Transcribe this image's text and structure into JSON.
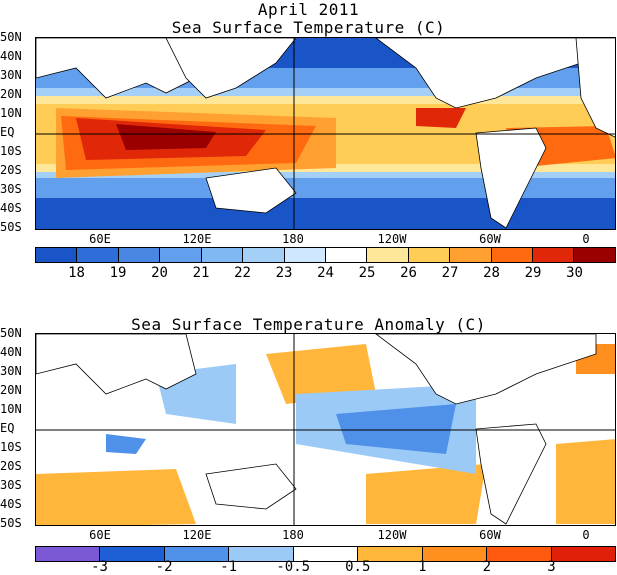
{
  "title": "April 2011",
  "map1": {
    "title": "Sea Surface Temperature (C)",
    "lat_labels": [
      "50N",
      "40N",
      "30N",
      "20N",
      "10N",
      "EQ",
      "10S",
      "20S",
      "30S",
      "40S",
      "50S"
    ],
    "lon_labels": [
      "60E",
      "120E",
      "180",
      "120W",
      "60W",
      "0"
    ],
    "colorbar": {
      "labels": [
        "18",
        "19",
        "20",
        "21",
        "22",
        "23",
        "24",
        "25",
        "26",
        "27",
        "28",
        "29",
        "30"
      ],
      "colors": [
        "#1a55c8",
        "#2f6ed8",
        "#4a86e4",
        "#62a0ee",
        "#80b8f4",
        "#a4d0f8",
        "#cfe8ff",
        "#ffffff",
        "#ffe79a",
        "#ffcc55",
        "#ffa030",
        "#ff6a10",
        "#e02808",
        "#9a0000"
      ]
    }
  },
  "map2": {
    "title": "Sea Surface Temperature Anomaly (C)",
    "lat_labels": [
      "50N",
      "40N",
      "30N",
      "20N",
      "10N",
      "EQ",
      "10S",
      "20S",
      "30S",
      "40S",
      "50S"
    ],
    "lon_labels": [
      "60E",
      "120E",
      "180",
      "120W",
      "60W",
      "0"
    ],
    "colorbar": {
      "labels": [
        "-3",
        "-2",
        "-1",
        "-0.5",
        "0.5",
        "1",
        "2",
        "3"
      ],
      "colors": [
        "#7b59d6",
        "#1f5fd6",
        "#4f90e8",
        "#9ccaf6",
        "#ffffff",
        "#ffb63a",
        "#ff9020",
        "#ff5a10",
        "#e02008"
      ]
    }
  }
}
